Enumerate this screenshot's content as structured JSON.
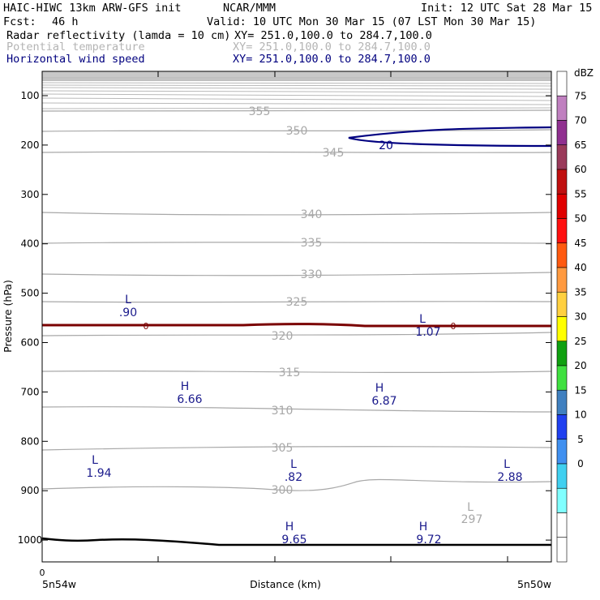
{
  "header": {
    "model": "HAIC-HIWC 13km ARW-GFS init",
    "org": "NCAR/MMM",
    "init": "Init: 12 UTC Sat 28 Mar 15",
    "fcst_label": "Fcst:",
    "fcst_value": "46 h",
    "valid": "Valid: 10 UTC Mon 30 Mar 15 (07 LST Mon 30 Mar 15)",
    "field1_name": "Radar reflectivity (lamda = 10 cm)",
    "field1_xy": "XY= 251.0,100.0 to 284.7,100.0",
    "field2_name": "Potential temperature",
    "field2_xy": "XY= 251.0,100.0 to 284.7,100.0",
    "field3_name": "Horizontal wind speed",
    "field3_xy": "XY= 251.0,100.0 to 284.7,100.0"
  },
  "colors": {
    "field1": "#000000",
    "field2": "#b4b4b4",
    "field3": "#00007f",
    "theta": "#a8a8a8",
    "wind": "#000080",
    "zero": "#7a0000",
    "terrain": "#000000",
    "hl": "#1a1a8c"
  },
  "chart_data": {
    "type": "line",
    "xlabel": "Distance (km)",
    "ylabel": "Pressure (hPa)",
    "x_start_label": "5n54w",
    "x_end_label": "5n50w",
    "x_zero_label": "0",
    "ylim": [
      1050,
      50
    ],
    "yticks": [
      "100",
      "200",
      "300",
      "400",
      "500",
      "600",
      "700",
      "800",
      "900",
      "1000"
    ],
    "ytick_values": [
      100,
      200,
      300,
      400,
      500,
      600,
      700,
      800,
      900,
      1000
    ],
    "colorbar": {
      "unit": "dBZ",
      "levels": [
        "75",
        "70",
        "65",
        "60",
        "55",
        "50",
        "45",
        "40",
        "35",
        "30",
        "25",
        "20",
        "15",
        "10",
        "5",
        "0"
      ],
      "colors": [
        "#ffffff",
        "#c080c0",
        "#903090",
        "#9a3a5a",
        "#c01010",
        "#e00000",
        "#ff1010",
        "#ff5a10",
        "#ff9a40",
        "#ffd040",
        "#ffff00",
        "#10a010",
        "#40e040",
        "#4080c0",
        "#2040f0",
        "#4090f0",
        "#40d0f0",
        "#80ffff",
        "#ffffff",
        "#ffffff"
      ]
    },
    "theta_labels": [
      "355",
      "350",
      "345",
      "340",
      "335",
      "330",
      "325",
      "320",
      "315",
      "310",
      "305",
      "300",
      "297"
    ],
    "wind_label": "20",
    "zero_label": "0",
    "extrema": [
      {
        "kind": "L",
        "value": ".90"
      },
      {
        "kind": "L",
        "value": "1.07"
      },
      {
        "kind": "H",
        "value": "6.66"
      },
      {
        "kind": "H",
        "value": "6.87"
      },
      {
        "kind": "L",
        "value": "1.94"
      },
      {
        "kind": "L",
        "value": ".82"
      },
      {
        "kind": "L",
        "value": "2.88"
      },
      {
        "kind": "H",
        "value": "9.65"
      },
      {
        "kind": "H",
        "value": "9.72"
      }
    ]
  }
}
